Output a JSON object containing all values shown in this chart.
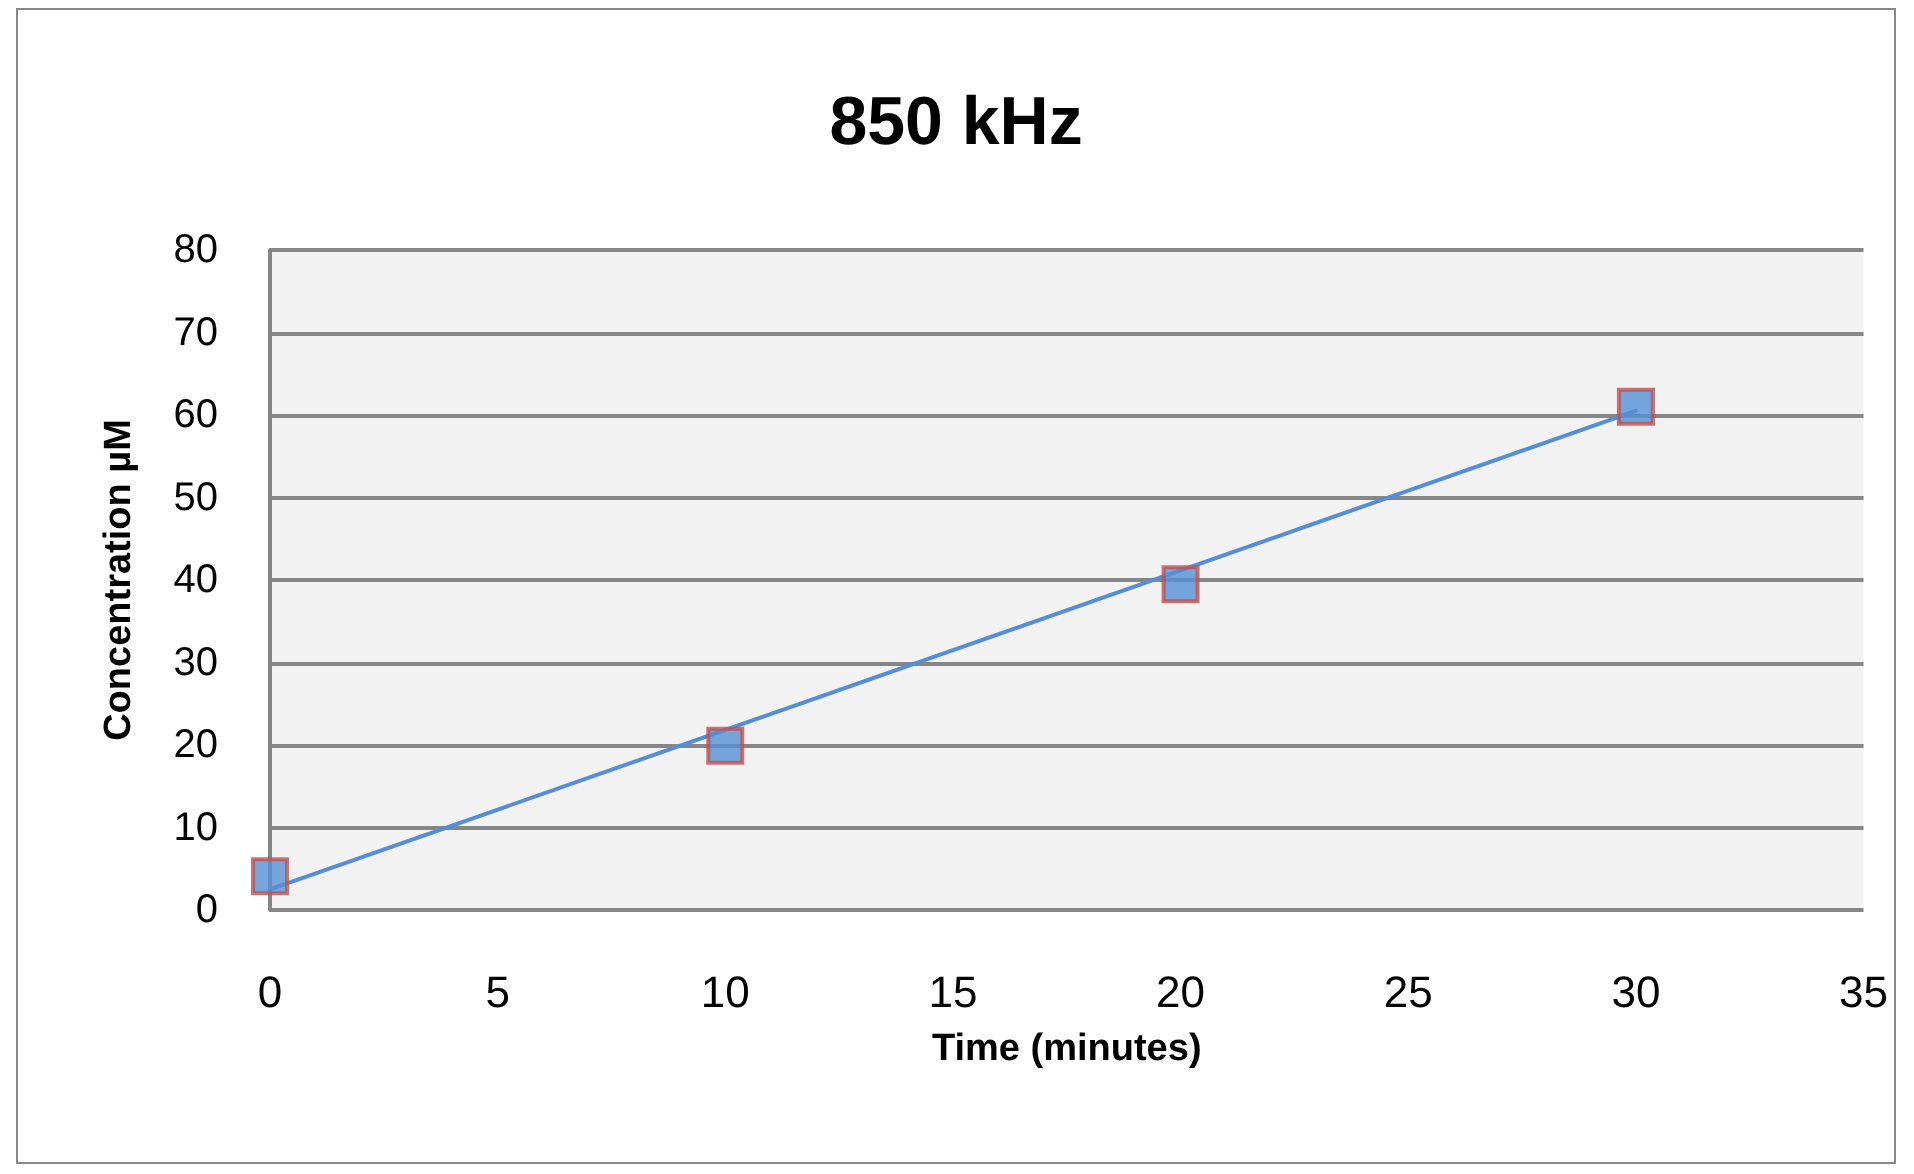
{
  "chart_data": {
    "type": "scatter",
    "title": "850 kHz",
    "xlabel": "Time (minutes)",
    "ylabel": "Concentration µM",
    "xlim": [
      0,
      35
    ],
    "xticks": [
      0,
      5,
      10,
      15,
      20,
      25,
      30,
      35
    ],
    "ylim": [
      0,
      80
    ],
    "yticks": [
      0,
      10,
      20,
      30,
      40,
      50,
      60,
      70,
      80
    ],
    "grid": "y",
    "marker": "square",
    "series": [
      {
        "color": "#558ed5",
        "x": [
          0,
          10,
          20,
          30
        ],
        "values": [
          4.1,
          19.9,
          39.5,
          61
        ]
      },
      {
        "type": "line",
        "color": "#558ed5",
        "x": [
          0,
          30
        ],
        "values": [
          2.5,
          60.5
        ],
        "marker": "none",
        "line_style": "solid"
      }
    ]
  }
}
